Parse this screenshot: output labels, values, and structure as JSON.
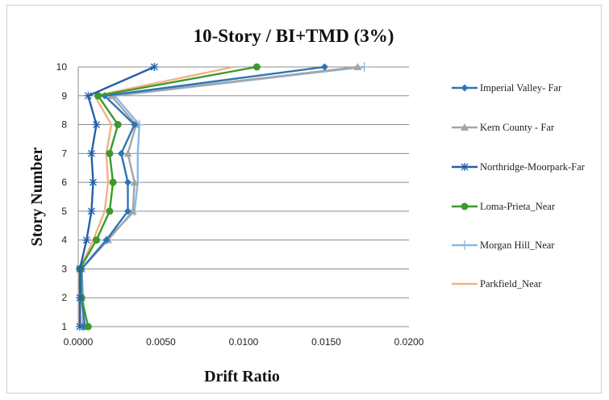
{
  "chart_data": {
    "type": "line",
    "title": "10-Story / BI+TMD  (3%)",
    "xlabel": "Drift Ratio",
    "ylabel": "Story Number",
    "xlim": [
      0,
      0.02
    ],
    "ylim": [
      1,
      10
    ],
    "x_ticks": [
      "0.0000",
      "0.0050",
      "0.0100",
      "0.0150",
      "0.0200"
    ],
    "y_ticks": [
      "1",
      "2",
      "3",
      "4",
      "5",
      "6",
      "7",
      "8",
      "9",
      "10"
    ],
    "grid": "horizontal",
    "legend_position": "right",
    "y": [
      1,
      2,
      3,
      4,
      5,
      6,
      7,
      8,
      9,
      10
    ],
    "series": [
      {
        "name": "Imperial Valley- Far",
        "color": "#2e75b6",
        "marker": "diamond",
        "values": [
          0.0004,
          0.0002,
          0.0002,
          0.0017,
          0.003,
          0.003,
          0.0026,
          0.0034,
          0.0016,
          0.0149
        ]
      },
      {
        "name": "Kern County - Far",
        "color": "#a5a5a5",
        "marker": "triangle",
        "values": [
          0.0004,
          0.0002,
          0.0002,
          0.0018,
          0.0033,
          0.0034,
          0.003,
          0.0035,
          0.002,
          0.0169
        ]
      },
      {
        "name": "Northridge-Moorpark-Far",
        "color": "#2460a7",
        "marker": "star",
        "values": [
          0.0001,
          0.0001,
          0.0001,
          0.0005,
          0.0008,
          0.0009,
          0.0008,
          0.0011,
          0.0006,
          0.0046
        ]
      },
      {
        "name": "Loma-Prieta_Near",
        "color": "#3a9a2e",
        "marker": "circle",
        "values": [
          0.0006,
          0.0002,
          0.0001,
          0.0011,
          0.0019,
          0.0021,
          0.0019,
          0.0024,
          0.0012,
          0.0108
        ]
      },
      {
        "name": "Morgan Hill_Near",
        "color": "#8db8e0",
        "marker": "plus",
        "values": [
          0.0003,
          0.0003,
          0.0002,
          0.0017,
          0.0034,
          0.0036,
          0.0036,
          0.0037,
          0.0022,
          0.0173
        ]
      },
      {
        "name": "Parkfield_Near",
        "color": "#f4b183",
        "marker": "none",
        "values": [
          0.0002,
          0.0001,
          0.0001,
          0.0009,
          0.0016,
          0.0018,
          0.0017,
          0.002,
          0.001,
          0.0094
        ]
      }
    ]
  }
}
